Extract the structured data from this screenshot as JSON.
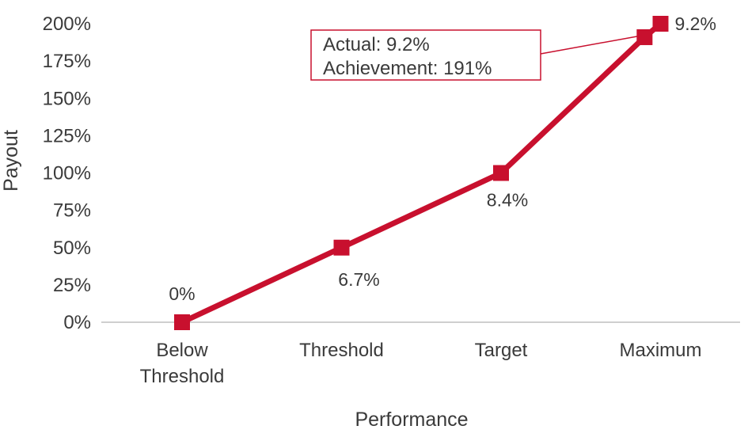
{
  "chart_data": {
    "type": "line",
    "title": "",
    "xlabel": "Performance",
    "ylabel": "Payout",
    "categories": [
      [
        "Below",
        "Threshold"
      ],
      [
        "Threshold"
      ],
      [
        "Target"
      ],
      [
        "Maximum"
      ]
    ],
    "series": [
      {
        "values": [
          0,
          50,
          100,
          200
        ]
      }
    ],
    "ylim": [
      0,
      200
    ],
    "yticks": [
      "0%",
      "25%",
      "50%",
      "75%",
      "100%",
      "125%",
      "150%",
      "175%",
      "200%"
    ],
    "data_labels": [
      "0%",
      "6.7%",
      "8.4%",
      "9.2%"
    ],
    "actual_point": {
      "x": 2.9,
      "y": 191
    },
    "callout": {
      "lines": [
        "Actual: 9.2%",
        "Achievement: 191%"
      ]
    },
    "line_color": "#c8102e",
    "grid": false,
    "legend": "none"
  }
}
